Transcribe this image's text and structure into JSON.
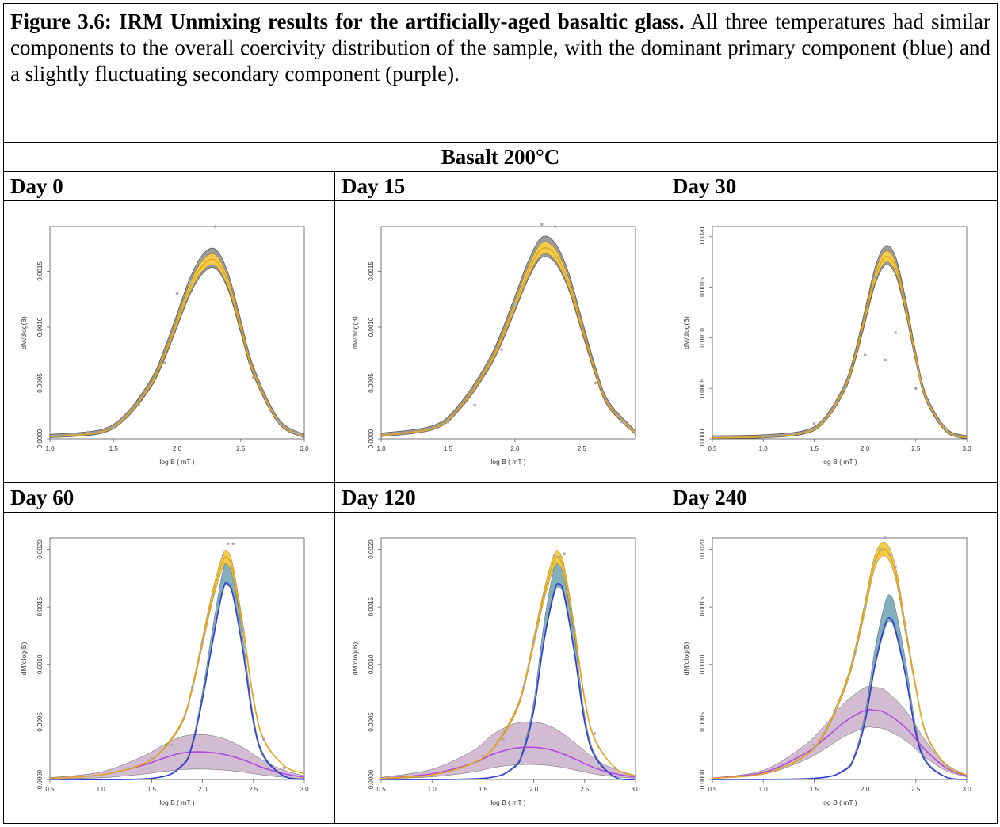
{
  "caption": {
    "bold": "Figure 3.6: IRM Unmixing results for the artificially-aged basaltic glass.",
    "text": " All three temperatures had similar components to the overall coercivity distribution of the sample, with the dominant primary component (blue) and a slightly fluctuating secondary component (purple)."
  },
  "section_title": "Basalt 200°C",
  "colors": {
    "total_fit": "#e6a823",
    "total_band": "#f2cc4a",
    "data_band": "#8a8a8a",
    "primary": "#2f3fd6",
    "primary_band": "#4f8fa3",
    "secondary": "#b24ae0",
    "secondary_band": "#9a6b9a",
    "points": "#aaaaaa"
  },
  "panels": [
    {
      "day_label": "Day 0",
      "chart_data": {
        "type": "line",
        "xlabel": "log B ( mT )",
        "ylabel": "dM/dlog(B)",
        "xlim": [
          1.0,
          3.0
        ],
        "xticks": [
          "1.0",
          "1.5",
          "2.0",
          "2.5",
          "3.0"
        ],
        "ylim": [
          0,
          0.0019
        ],
        "yticks": [
          "0.0000",
          "0.0005",
          "0.0010",
          "0.0015"
        ],
        "series": [
          {
            "x": [
              1.0,
              1.4,
              1.6,
              1.8,
              1.9,
              2.0,
              2.1,
              2.2,
              2.3,
              2.4,
              2.5,
              2.6,
              2.8,
              3.0
            ],
            "y": [
              2e-05,
              6e-05,
              0.0002,
              0.0005,
              0.00075,
              0.00105,
              0.00135,
              0.00155,
              0.0016,
              0.0014,
              0.001,
              0.0006,
              0.00015,
              2e-05
            ]
          }
        ],
        "points": {
          "x": [
            1.3,
            1.5,
            1.7,
            1.9,
            2.0,
            2.1,
            2.3,
            2.6,
            2.8,
            2.95
          ],
          "y": [
            6e-05,
            0.0001,
            0.0003,
            0.00068,
            0.0013,
            0.0014,
            0.0019,
            0.00055,
            0.00015,
            5e-05
          ]
        },
        "has_components": false
      }
    },
    {
      "day_label": "Day 15",
      "chart_data": {
        "type": "line",
        "xlabel": "log B ( mT )",
        "ylabel": "dM/dlog(B)",
        "xlim": [
          1.0,
          2.9
        ],
        "xticks": [
          "1.0",
          "1.5",
          "2.0",
          "2.5"
        ],
        "ylim": [
          0,
          0.0019
        ],
        "yticks": [
          "0.0000",
          "0.0005",
          "0.0010",
          "0.0015"
        ],
        "series": [
          {
            "x": [
              1.0,
              1.4,
              1.6,
              1.8,
              1.9,
              2.0,
              2.1,
              2.2,
              2.3,
              2.4,
              2.5,
              2.6,
              2.7,
              2.9
            ],
            "y": [
              3e-05,
              0.0001,
              0.0003,
              0.00065,
              0.0009,
              0.0012,
              0.0015,
              0.0017,
              0.00165,
              0.0014,
              0.001,
              0.0006,
              0.0003,
              5e-05
            ]
          }
        ],
        "points": {
          "x": [
            1.5,
            1.7,
            1.9,
            2.0,
            2.2,
            2.3,
            2.5,
            2.6,
            2.8
          ],
          "y": [
            0.00015,
            0.0003,
            0.0008,
            0.0012,
            0.00192,
            0.0019,
            0.00105,
            0.0005,
            0.00015
          ]
        },
        "has_components": false
      }
    },
    {
      "day_label": "Day 30",
      "chart_data": {
        "type": "line",
        "xlabel": "log B ( mT )",
        "ylabel": "dM/dlog(B)",
        "xlim": [
          0.5,
          3.0
        ],
        "xticks": [
          "0.5",
          "1.0",
          "1.5",
          "2.0",
          "2.5",
          "3.0"
        ],
        "ylim": [
          0,
          0.0021
        ],
        "yticks": [
          "0.0000",
          "0.0005",
          "0.0010",
          "0.0015",
          "0.0020"
        ],
        "series": [
          {
            "x": [
              0.5,
              1.0,
              1.4,
              1.6,
              1.8,
              1.9,
              2.0,
              2.1,
              2.2,
              2.3,
              2.4,
              2.5,
              2.6,
              2.8,
              3.0
            ],
            "y": [
              1e-05,
              2e-05,
              6e-05,
              0.00018,
              0.0005,
              0.0008,
              0.0012,
              0.0016,
              0.0018,
              0.0017,
              0.0013,
              0.0008,
              0.0004,
              8e-05,
              1e-05
            ]
          }
        ],
        "points": {
          "x": [
            1.0,
            1.3,
            1.5,
            1.7,
            1.8,
            2.0,
            2.1,
            2.2,
            2.3,
            2.5,
            2.8
          ],
          "y": [
            2e-05,
            5e-05,
            0.00015,
            0.00035,
            0.0005,
            0.00083,
            0.0016,
            0.00078,
            0.00105,
            0.0005,
            0.0001
          ]
        },
        "has_components": false
      }
    },
    {
      "day_label": "Day 60",
      "chart_data": {
        "type": "line",
        "xlabel": "log B ( mT )",
        "ylabel": "dM/dlog(B)",
        "xlim": [
          0.5,
          3.0
        ],
        "xticks": [
          "0.5",
          "1.0",
          "1.5",
          "2.0",
          "2.5",
          "3.0"
        ],
        "ylim": [
          0,
          0.0021
        ],
        "yticks": [
          "0.0000",
          "0.0005",
          "0.0010",
          "0.0015",
          "0.0020"
        ],
        "series": [
          {
            "name": "total",
            "x": [
              0.5,
              1.0,
              1.4,
              1.6,
              1.8,
              1.9,
              2.0,
              2.1,
              2.2,
              2.25,
              2.3,
              2.4,
              2.5,
              2.6,
              2.8,
              3.0
            ],
            "y": [
              1e-05,
              4e-05,
              0.00013,
              0.00025,
              0.0005,
              0.0008,
              0.0012,
              0.0016,
              0.0019,
              0.00192,
              0.0018,
              0.0013,
              0.0007,
              0.00035,
              0.00012,
              5e-05
            ]
          },
          {
            "name": "primary",
            "x": [
              0.5,
              1.5,
              1.8,
              1.9,
              2.0,
              2.1,
              2.2,
              2.25,
              2.3,
              2.4,
              2.5,
              2.6,
              2.8,
              3.0
            ],
            "y": [
              0.0,
              1e-05,
              0.00012,
              0.0003,
              0.0007,
              0.0012,
              0.00165,
              0.0017,
              0.0016,
              0.0011,
              0.0005,
              0.0002,
              3e-05,
              0.0
            ],
            "band": [
              0.00017,
              2e-05
            ]
          },
          {
            "name": "secondary",
            "x": [
              0.5,
              1.0,
              1.4,
              1.6,
              1.8,
              2.0,
              2.2,
              2.4,
              2.6,
              2.8,
              3.0
            ],
            "y": [
              1e-05,
              4e-05,
              0.00012,
              0.00018,
              0.00023,
              0.00024,
              0.00022,
              0.00017,
              0.0001,
              5e-05,
              2e-05
            ],
            "band": [
              0.00015,
              0.00015
            ]
          }
        ],
        "points": {
          "x": [
            1.5,
            1.7,
            1.9,
            2.0,
            2.1,
            2.2,
            2.25,
            2.3,
            2.4,
            2.6,
            2.8
          ],
          "y": [
            0.00018,
            0.0003,
            0.0008,
            0.0012,
            0.0016,
            0.00195,
            0.00205,
            0.00205,
            0.0013,
            0.00035,
            0.0001
          ]
        },
        "has_components": true
      }
    },
    {
      "day_label": "Day 120",
      "chart_data": {
        "type": "line",
        "xlabel": "log B ( mT )",
        "ylabel": "dM/dlog(B)",
        "xlim": [
          0.5,
          3.0
        ],
        "xticks": [
          "0.5",
          "1.0",
          "1.5",
          "2.0",
          "2.5",
          "3.0"
        ],
        "ylim": [
          0,
          0.0021
        ],
        "yticks": [
          "0.0000",
          "0.0005",
          "0.0010",
          "0.0015",
          "0.0020"
        ],
        "series": [
          {
            "name": "total",
            "x": [
              0.5,
              1.0,
              1.4,
              1.6,
              1.8,
              1.9,
              2.0,
              2.1,
              2.2,
              2.25,
              2.3,
              2.4,
              2.5,
              2.6,
              2.8,
              3.0
            ],
            "y": [
              1e-05,
              4e-05,
              0.00014,
              0.00027,
              0.00055,
              0.0008,
              0.0012,
              0.0016,
              0.0019,
              0.00192,
              0.0018,
              0.0013,
              0.0007,
              0.00035,
              0.0001,
              3e-05
            ]
          },
          {
            "name": "primary",
            "x": [
              0.5,
              1.5,
              1.8,
              1.9,
              2.0,
              2.1,
              2.2,
              2.25,
              2.3,
              2.4,
              2.5,
              2.6,
              2.8,
              3.0
            ],
            "y": [
              0.0,
              1e-05,
              0.0001,
              0.00025,
              0.0006,
              0.0012,
              0.00163,
              0.0017,
              0.0016,
              0.0011,
              0.0005,
              0.0002,
              2e-05,
              0.0
            ],
            "band": [
              0.00022,
              3e-05
            ]
          },
          {
            "name": "secondary",
            "x": [
              0.5,
              1.0,
              1.4,
              1.6,
              1.8,
              2.0,
              2.2,
              2.4,
              2.6,
              2.8,
              3.0
            ],
            "y": [
              1e-05,
              5e-05,
              0.00014,
              0.00022,
              0.00027,
              0.00028,
              0.00025,
              0.00018,
              0.0001,
              5e-05,
              2e-05
            ],
            "band": [
              0.00022,
              0.00015
            ]
          }
        ],
        "points": {
          "x": [
            1.5,
            1.7,
            1.9,
            2.0,
            2.1,
            2.2,
            2.25,
            2.3,
            2.4,
            2.6,
            2.8
          ],
          "y": [
            0.0002,
            0.00035,
            0.0008,
            0.0012,
            0.0016,
            0.00195,
            0.00193,
            0.00196,
            0.0013,
            0.0004,
            0.0001
          ]
        },
        "has_components": true
      }
    },
    {
      "day_label": "Day 240",
      "chart_data": {
        "type": "line",
        "xlabel": "log B ( mT )",
        "ylabel": "dM/dlog(B)",
        "xlim": [
          0.5,
          3.0
        ],
        "xticks": [
          "0.5",
          "1.0",
          "1.5",
          "2.0",
          "2.5",
          "3.0"
        ],
        "ylim": [
          0,
          0.0021
        ],
        "yticks": [
          "0.0000",
          "0.0005",
          "0.0010",
          "0.0015",
          "0.0020"
        ],
        "series": [
          {
            "name": "total",
            "x": [
              0.5,
              1.0,
              1.4,
              1.6,
              1.8,
              1.9,
              2.0,
              2.1,
              2.2,
              2.3,
              2.4,
              2.5,
              2.6,
              2.8,
              3.0
            ],
            "y": [
              1e-05,
              5e-05,
              0.0002,
              0.0004,
              0.0008,
              0.0011,
              0.0015,
              0.0019,
              0.002,
              0.0018,
              0.0013,
              0.0008,
              0.0004,
              0.00012,
              4e-05
            ]
          },
          {
            "name": "primary",
            "x": [
              0.5,
              1.5,
              1.8,
              1.9,
              2.0,
              2.1,
              2.2,
              2.25,
              2.3,
              2.4,
              2.5,
              2.6,
              2.8,
              3.0
            ],
            "y": [
              0.0,
              1e-05,
              8e-05,
              0.0002,
              0.0005,
              0.001,
              0.00135,
              0.0014,
              0.0013,
              0.0009,
              0.0004,
              0.00015,
              2e-05,
              0.0
            ],
            "band": [
              0.0002,
              3e-05
            ]
          },
          {
            "name": "secondary",
            "x": [
              0.5,
              1.0,
              1.4,
              1.6,
              1.8,
              2.0,
              2.1,
              2.2,
              2.4,
              2.6,
              2.8,
              3.0
            ],
            "y": [
              1e-05,
              6e-05,
              0.00022,
              0.00035,
              0.0005,
              0.0006,
              0.0006,
              0.00058,
              0.00045,
              0.00025,
              0.0001,
              3e-05
            ],
            "band": [
              0.0002,
              0.00015
            ]
          }
        ],
        "points": {
          "x": [
            1.5,
            1.7,
            1.9,
            2.0,
            2.1,
            2.15,
            2.2,
            2.25,
            2.3,
            2.4,
            2.6,
            2.8
          ],
          "y": [
            0.0003,
            0.0006,
            0.0011,
            0.0015,
            0.0019,
            0.002,
            0.0021,
            0.00195,
            0.00185,
            0.0013,
            0.0004,
            0.0001
          ]
        },
        "has_components": true
      }
    }
  ]
}
